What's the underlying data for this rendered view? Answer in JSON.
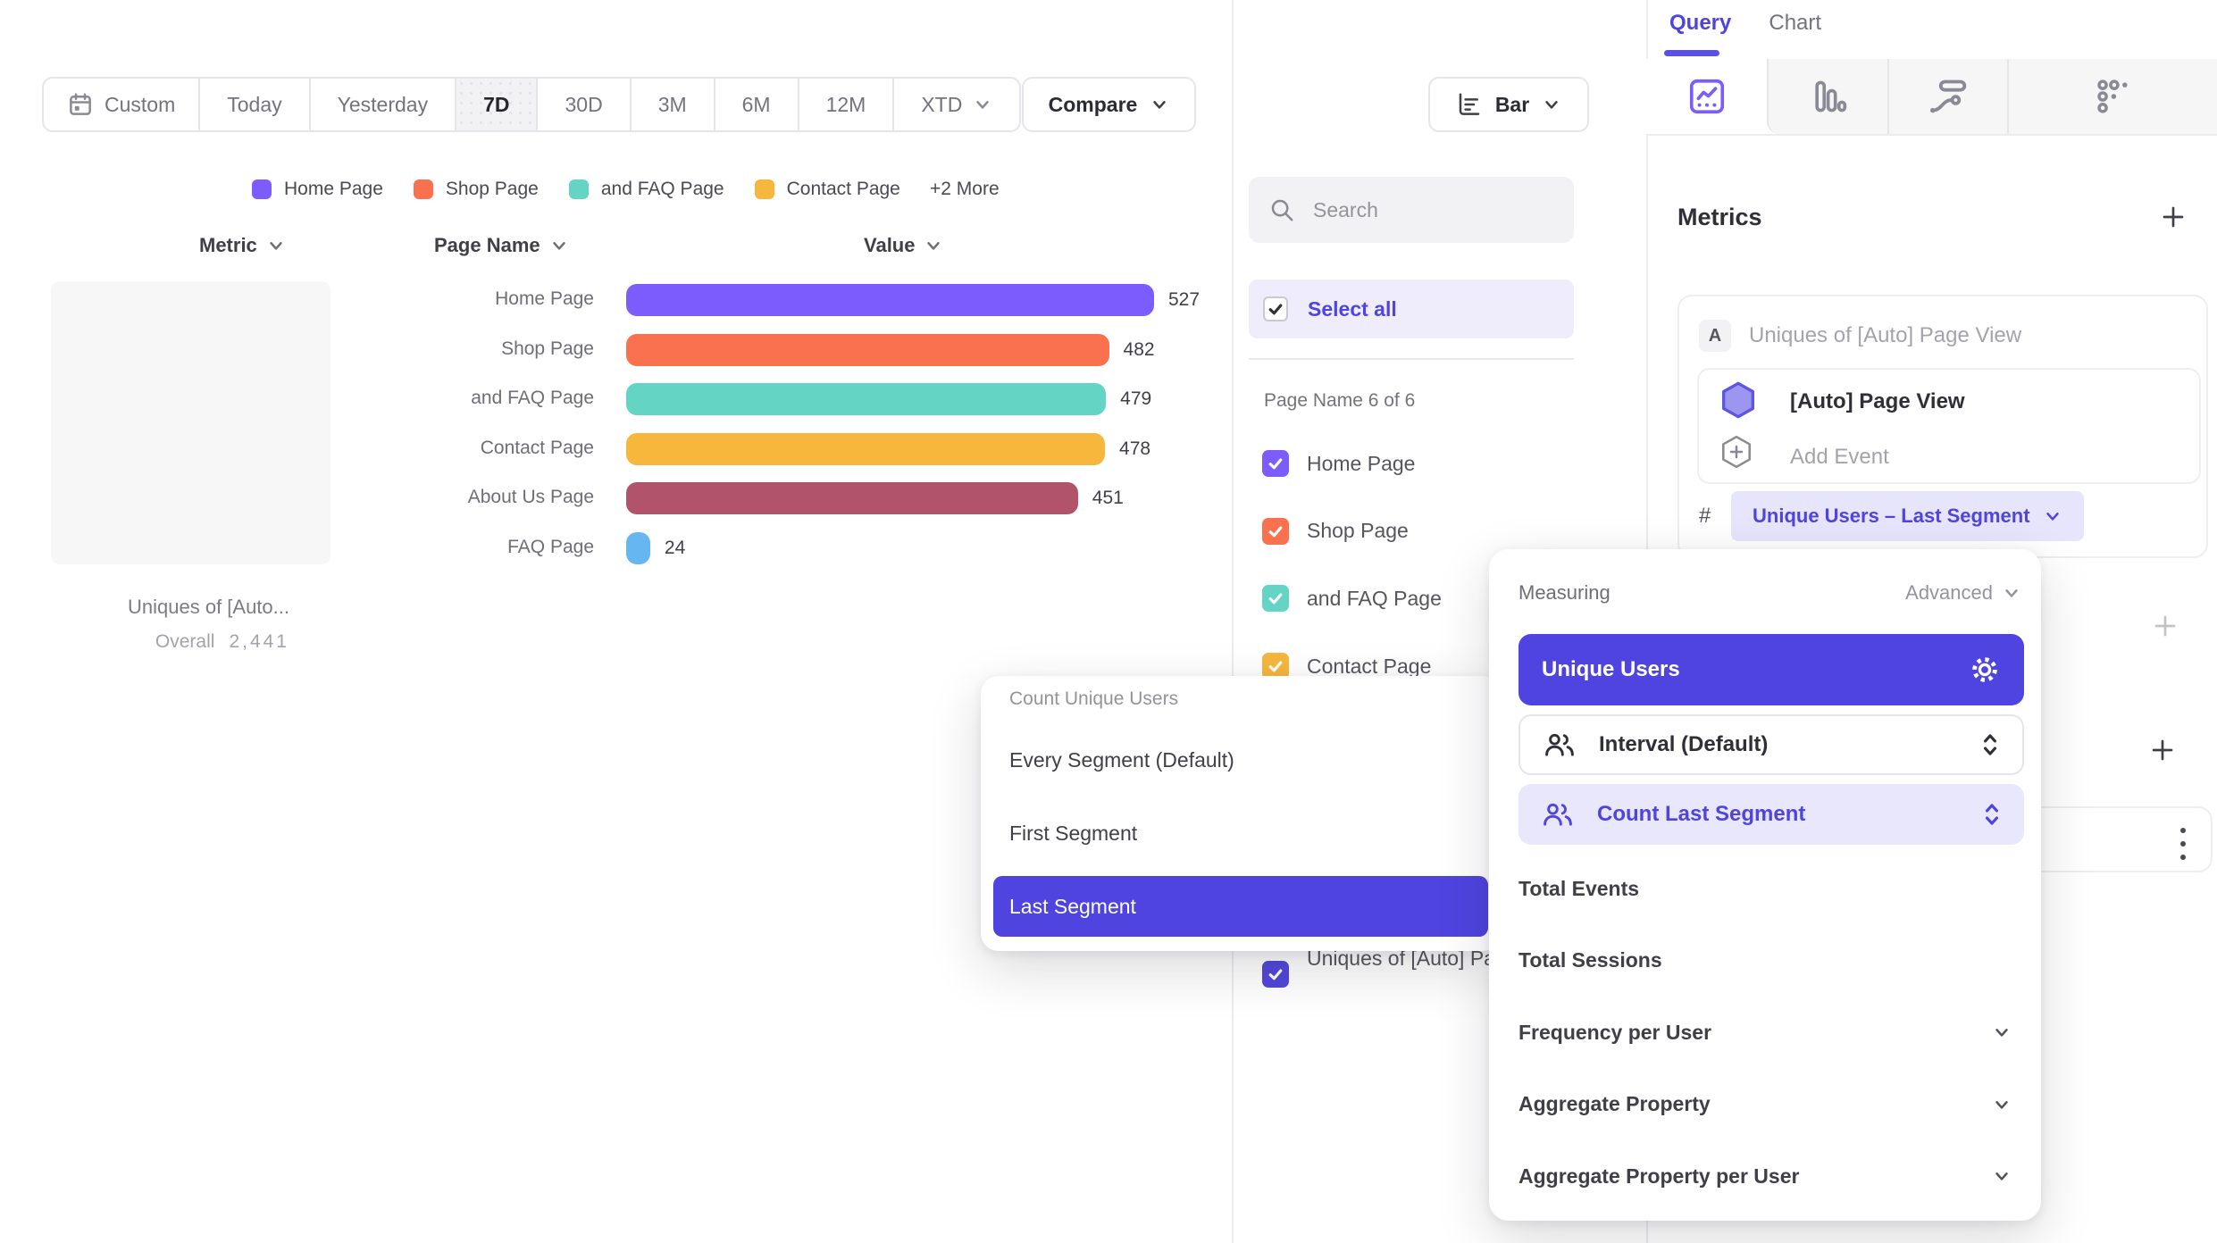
{
  "toolbar": {
    "date_ranges": [
      {
        "label": "Custom",
        "icon": "calendar-icon"
      },
      {
        "label": "Today"
      },
      {
        "label": "Yesterday"
      },
      {
        "label": "7D",
        "selected": true
      },
      {
        "label": "30D"
      },
      {
        "label": "3M"
      },
      {
        "label": "6M"
      },
      {
        "label": "12M"
      },
      {
        "label": "XTD",
        "chevron": true
      }
    ],
    "compare_label": "Compare",
    "chart_type": {
      "label": "Bar",
      "icon": "bar-chart-icon"
    }
  },
  "legend": {
    "items": [
      {
        "label": "Home Page",
        "color": "#7C5CFC"
      },
      {
        "label": "Shop Page",
        "color": "#F9714F"
      },
      {
        "label": "and FAQ Page",
        "color": "#64D5C5"
      },
      {
        "label": "Contact Page",
        "color": "#F6B73C"
      }
    ],
    "more_label": "+2 More"
  },
  "table_headers": {
    "metric": "Metric",
    "page_name": "Page Name",
    "value": "Value"
  },
  "metric_card": {
    "title": "Uniques of [Auto...",
    "overall_label": "Overall",
    "overall_value": "2,441"
  },
  "chart_data": {
    "type": "bar",
    "orientation": "horizontal",
    "title": "Uniques of [Auto] Page View",
    "overall_total": 2441,
    "categories": [
      "Home Page",
      "Shop Page",
      "and FAQ Page",
      "Contact Page",
      "About Us Page",
      "FAQ Page"
    ],
    "values": [
      527,
      482,
      479,
      478,
      451,
      24
    ],
    "colors": [
      "#7C5CFC",
      "#F9714F",
      "#64D5C5",
      "#F6B73C",
      "#B15369",
      "#66B6F2"
    ],
    "xlabel": "Value",
    "ylabel": "Page Name",
    "legend_position": "top",
    "grid": false
  },
  "filter_panel": {
    "search_placeholder": "Search",
    "select_all_label": "Select all",
    "group_label": "Page Name 6 of 6",
    "items": [
      {
        "label": "Home Page",
        "color": "#7C5CFC",
        "checked": true
      },
      {
        "label": "Shop Page",
        "color": "#F9714F",
        "checked": true
      },
      {
        "label": "and FAQ Page",
        "color": "#64D5C5",
        "checked": true
      },
      {
        "label": "Contact Page",
        "color": "#F6B73C",
        "checked": true
      }
    ],
    "metric_item": {
      "label": "Uniques of [Auto] Page View",
      "color": "#5247DB",
      "checked": true
    }
  },
  "segment_popup": {
    "title": "Count Unique Users",
    "options": [
      {
        "label": "Every Segment (Default)"
      },
      {
        "label": "First Segment"
      },
      {
        "label": "Last Segment",
        "selected": true
      }
    ]
  },
  "sidebar": {
    "tabs": [
      {
        "label": "Query",
        "active": true
      },
      {
        "label": "Chart"
      }
    ],
    "chart_type_tabs": [
      {
        "icon": "insights-icon",
        "active": true
      },
      {
        "icon": "funnels-icon"
      },
      {
        "icon": "flows-icon"
      },
      {
        "icon": "retention-icon"
      }
    ],
    "metrics_heading": "Metrics",
    "metric": {
      "badge": "A",
      "title": "Uniques of [Auto] Page View",
      "event_label": "[Auto] Page View",
      "add_event_label": "Add Event",
      "hash": "#",
      "aggregation_label": "Unique Users – Last Segment"
    }
  },
  "measuring_popup": {
    "header": "Measuring",
    "advanced_label": "Advanced",
    "primary": {
      "label": "Unique Users",
      "icon": "gear-icon"
    },
    "steppers": [
      {
        "label": "Interval (Default)",
        "icon": "people-icon"
      },
      {
        "label": "Count Last Segment",
        "icon": "people-icon",
        "active": true
      }
    ],
    "options": [
      {
        "label": "Total Events"
      },
      {
        "label": "Total Sessions"
      },
      {
        "label": "Frequency per User",
        "expandable": true
      },
      {
        "label": "Aggregate Property",
        "expandable": true
      },
      {
        "label": "Aggregate Property per User",
        "expandable": true
      }
    ]
  },
  "colors": {
    "accent": "#4F44E0",
    "accent_light_bg": "#E9E7FC",
    "pill_bg": "#E7E5FB",
    "select_all_bg": "#EFEDFC"
  }
}
